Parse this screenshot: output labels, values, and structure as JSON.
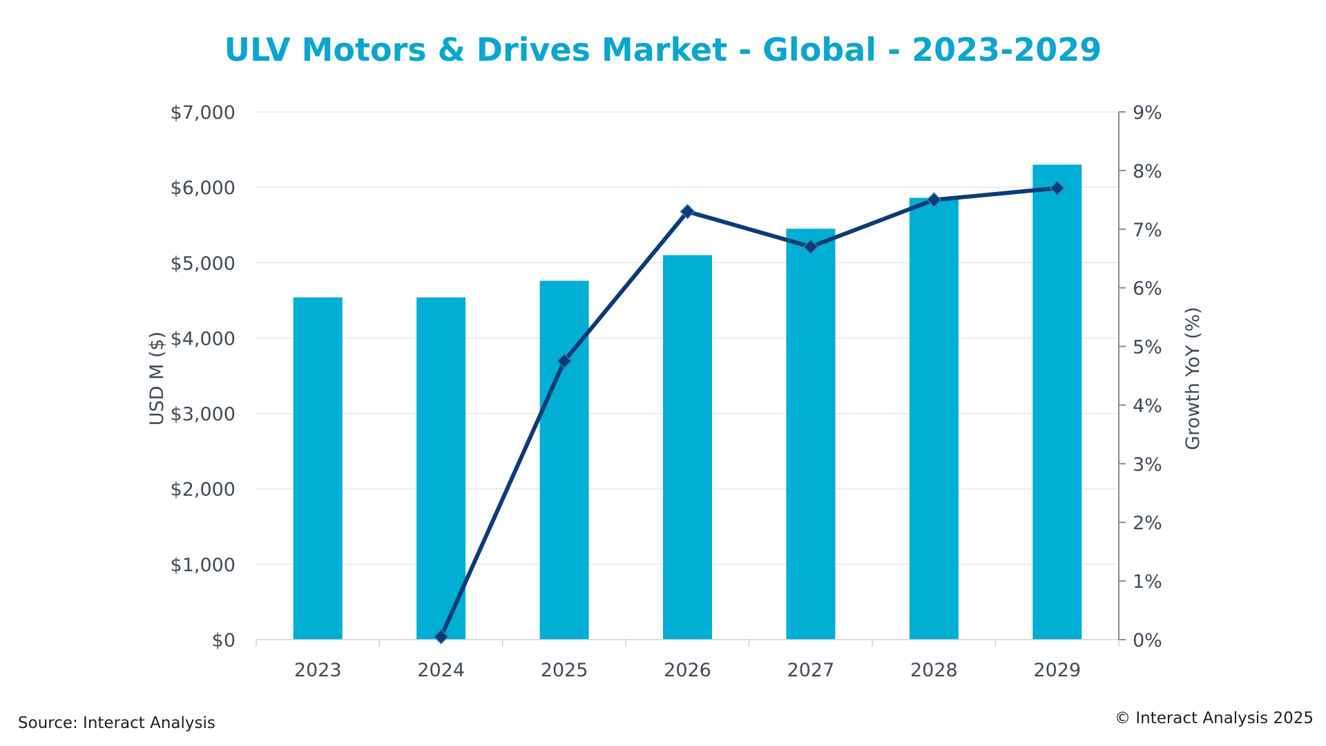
{
  "colors": {
    "title": "#0aa6cf",
    "bar": "#00afd3",
    "line": "#0b3b78",
    "grid": "#e8e8e8",
    "axis": "#8c8c8c",
    "text": "#404b57"
  },
  "chart_data": {
    "type": "bar",
    "title": "ULV Motors & Drives Market - Global - 2023-2029",
    "categories": [
      "2023",
      "2024",
      "2025",
      "2026",
      "2027",
      "2028",
      "2029"
    ],
    "series": [
      {
        "type": "bar",
        "axis": "left",
        "values": [
          4540,
          4540,
          4760,
          5100,
          5450,
          5860,
          6300
        ]
      },
      {
        "type": "line",
        "axis": "right",
        "marker": "diamond",
        "values": [
          null,
          0.05,
          4.75,
          7.3,
          6.7,
          7.5,
          7.7
        ]
      }
    ],
    "y_left": {
      "label": "USD M ($)",
      "ylim": [
        0,
        7000
      ],
      "ticks": [
        0,
        1000,
        2000,
        3000,
        4000,
        5000,
        6000,
        7000
      ],
      "tick_labels": [
        "$0",
        "$1,000",
        "$2,000",
        "$3,000",
        "$4,000",
        "$5,000",
        "$6,000",
        "$7,000"
      ]
    },
    "y_right": {
      "label": "Growth YoY (%)",
      "ylim": [
        0,
        9
      ],
      "ticks": [
        0,
        1,
        2,
        3,
        4,
        5,
        6,
        7,
        8,
        9
      ],
      "tick_labels": [
        "0%",
        "1%",
        "2%",
        "3%",
        "4%",
        "5%",
        "6%",
        "7%",
        "8%",
        "9%"
      ]
    },
    "grid": true,
    "legend": "none"
  },
  "footer": {
    "source": "Source: Interact Analysis",
    "copyright": "© Interact Analysis 2025"
  }
}
